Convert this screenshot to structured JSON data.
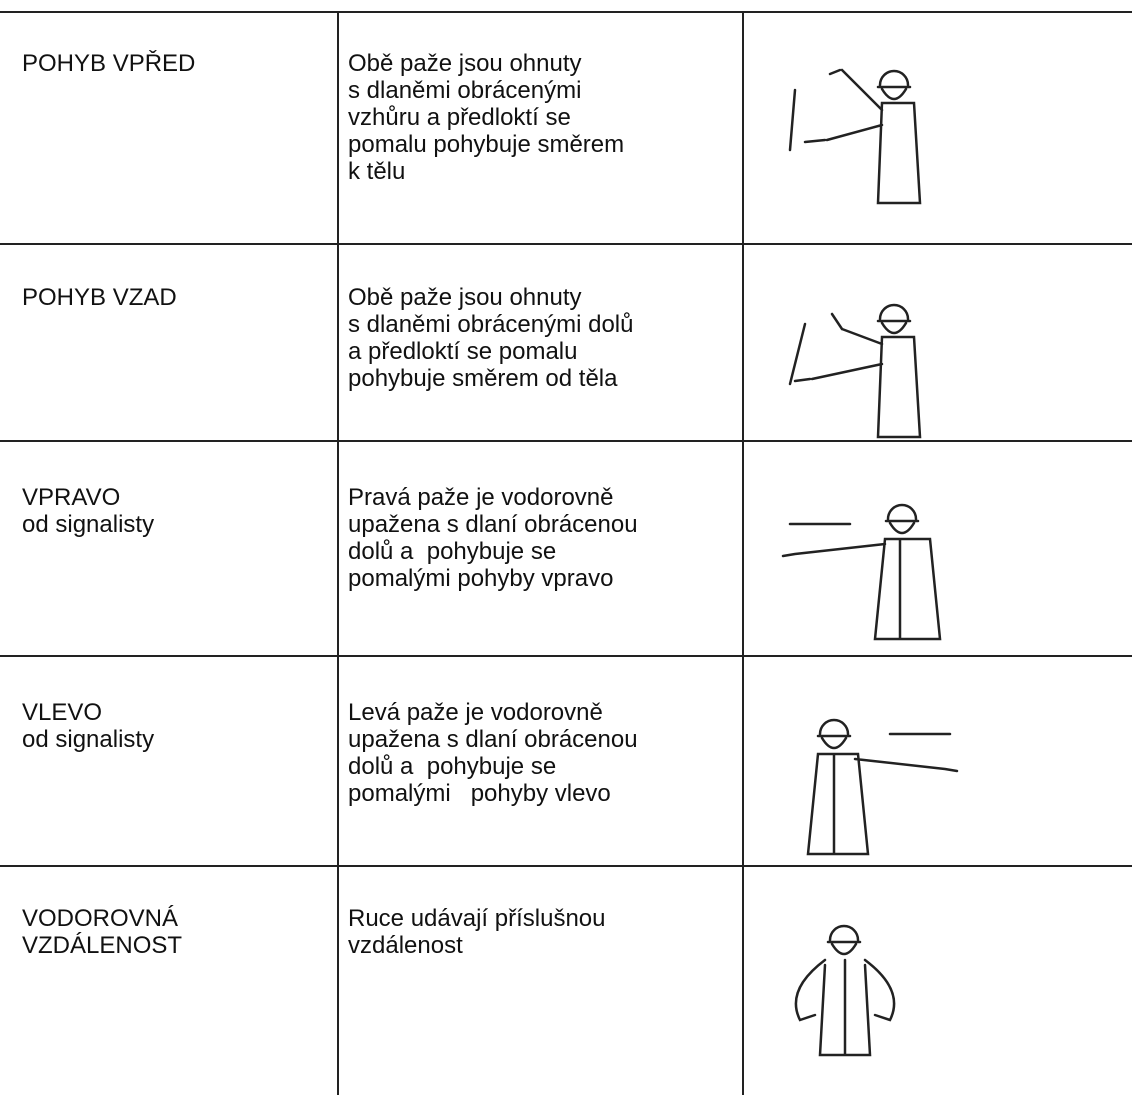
{
  "table": {
    "rows": [
      {
        "signal": [
          "POHYB VPŘED"
        ],
        "description": [
          "Obě paže jsou ohnuty",
          "s dlaněmi obrácenými",
          "vzhůru a předloktí se",
          "pomalu pohybuje směrem",
          "k tělu"
        ]
      },
      {
        "signal": [
          "POHYB VZAD"
        ],
        "description": [
          "Obě paže jsou ohnuty",
          "s dlaněmi obrácenými dolů",
          "a předloktí se pomalu",
          "pohybuje směrem od těla"
        ]
      },
      {
        "signal": [
          "VPRAVO",
          "od signalisty"
        ],
        "description": [
          "Pravá paže je vodorovně",
          "upažena s dlaní obrácenou",
          "dolů a  pohybuje se",
          "pomalými pohyby vpravo"
        ]
      },
      {
        "signal": [
          "VLEVO",
          "od signalisty"
        ],
        "description": [
          "Levá paže je vodorovně",
          "upažena s dlaní obrácenou",
          "dolů a  pohybuje se",
          "pomalými   pohyby vlevo"
        ]
      },
      {
        "signal": [
          "VODOROVNÁ",
          "VZDÁLENOST"
        ],
        "description": [
          "Ruce udávají příslušnou",
          "vzdálenost"
        ]
      }
    ]
  }
}
